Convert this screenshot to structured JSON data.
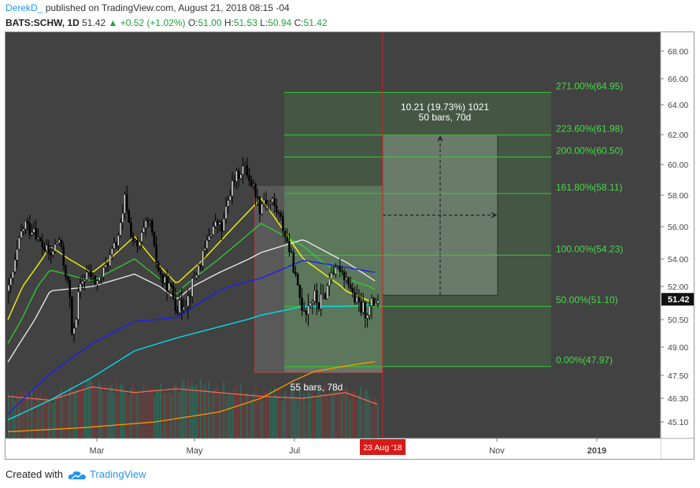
{
  "header": {
    "author": "DerekD_",
    "published": "published on TradingView.com, August 21, 2018 08:15 -04",
    "symbol": "BATS:SCHW, 1D",
    "last": "51.42",
    "change": "+0.52 (+1.02%)",
    "o_label": "O:",
    "o_value": "51.00",
    "h_label": "H:",
    "h_value": "51.53",
    "l_label": "L:",
    "l_value": "50.94",
    "c_label": "C:",
    "c_value": "51.42"
  },
  "footer": {
    "created_with": "Created with",
    "brand": "TradingView"
  },
  "colors": {
    "plot_bg": "#424242",
    "axis_bg": "#ffffff",
    "fib_line": "#33cc33",
    "fib_text": "#44dd44",
    "current_marker": "#d61a1a",
    "price_tag_bg": "#111111",
    "ma_yellow": "#ffff00",
    "ma_green": "#32cd32",
    "ma_white": "#f0f0f0",
    "ma_blue": "#1a1aff",
    "ma_cyan": "#00e5ee",
    "ma_orange": "#ff9900"
  },
  "chart_data": {
    "type": "candlestick",
    "y_axis": {
      "side": "right",
      "ticks": [
        "45.10",
        "46.30",
        "47.50",
        "49.00",
        "50.50",
        "52.00",
        "54.00",
        "56.00",
        "58.00",
        "60.00",
        "62.00",
        "64.00",
        "66.00",
        "68.00"
      ]
    },
    "x_axis": {
      "ticks": [
        "Mar",
        "May",
        "Jul",
        "Nov",
        "2019"
      ],
      "current_date_label": "23 Aug '18"
    },
    "last_price_label": "51.42",
    "fib_levels": [
      {
        "label": "271.00%(64.95)",
        "price": 64.95
      },
      {
        "label": "223.60%(61.98)",
        "price": 61.98
      },
      {
        "label": "200.00%(60.50)",
        "price": 60.5
      },
      {
        "label": "161.80%(58.11)",
        "price": 58.11
      },
      {
        "label": "100.00%(54.23)",
        "price": 54.23
      },
      {
        "label": "50.00%(51.10)",
        "price": 51.1
      },
      {
        "label": "0.00%(47.97)",
        "price": 47.97
      }
    ],
    "annotations": {
      "projection_line1": "10.21 (19.73%) 1021",
      "projection_line2": "50 bars, 70d",
      "measure_label": "55 bars, 78d"
    },
    "price_path": [
      [
        0,
        51.8
      ],
      [
        4,
        53.0
      ],
      [
        8,
        54.4
      ],
      [
        12,
        55.6
      ],
      [
        16,
        56.2
      ],
      [
        20,
        55.8
      ],
      [
        24,
        56.0
      ],
      [
        28,
        55.2
      ],
      [
        32,
        54.8
      ],
      [
        36,
        54.5
      ],
      [
        40,
        54.2
      ],
      [
        44,
        54.8
      ],
      [
        48,
        55.2
      ],
      [
        52,
        53.6
      ],
      [
        55,
        52.6
      ],
      [
        58,
        51.5
      ],
      [
        60,
        49.4
      ],
      [
        62,
        50.2
      ],
      [
        64,
        50.8
      ],
      [
        66,
        51.5
      ],
      [
        70,
        52.4
      ],
      [
        74,
        53.0
      ],
      [
        78,
        52.8
      ],
      [
        82,
        52.3
      ],
      [
        86,
        52.5
      ],
      [
        90,
        53.1
      ],
      [
        94,
        53.8
      ],
      [
        98,
        54.4
      ],
      [
        102,
        55.0
      ],
      [
        106,
        56.0
      ],
      [
        108,
        56.6
      ],
      [
        110,
        57.8
      ],
      [
        112,
        57.2
      ],
      [
        114,
        56.2
      ],
      [
        118,
        55.2
      ],
      [
        122,
        54.6
      ],
      [
        126,
        55.4
      ],
      [
        130,
        56.0
      ],
      [
        134,
        56.3
      ],
      [
        138,
        54.5
      ],
      [
        142,
        53.2
      ],
      [
        146,
        52.4
      ],
      [
        150,
        52.2
      ],
      [
        154,
        51.8
      ],
      [
        158,
        51.3
      ],
      [
        162,
        51.0
      ],
      [
        166,
        51.4
      ],
      [
        170,
        51.5
      ],
      [
        174,
        52.3
      ],
      [
        178,
        53.0
      ],
      [
        182,
        53.8
      ],
      [
        186,
        54.5
      ],
      [
        190,
        55.5
      ],
      [
        194,
        56.0
      ],
      [
        198,
        56.2
      ],
      [
        202,
        55.8
      ],
      [
        206,
        57.0
      ],
      [
        210,
        58.3
      ],
      [
        214,
        59.0
      ],
      [
        218,
        59.4
      ],
      [
        222,
        59.8
      ],
      [
        226,
        59.5
      ],
      [
        230,
        58.8
      ],
      [
        234,
        58.2
      ],
      [
        238,
        57.2
      ],
      [
        242,
        57.8
      ],
      [
        246,
        57.5
      ],
      [
        250,
        57.6
      ],
      [
        254,
        57.0
      ],
      [
        258,
        56.4
      ],
      [
        262,
        55.5
      ],
      [
        266,
        54.6
      ],
      [
        270,
        53.4
      ],
      [
        272,
        52.6
      ],
      [
        274,
        51.8
      ],
      [
        278,
        51.2
      ],
      [
        282,
        51.0
      ],
      [
        286,
        51.4
      ],
      [
        290,
        51.5
      ],
      [
        294,
        51.2
      ],
      [
        298,
        51.5
      ],
      [
        302,
        52.0
      ],
      [
        306,
        53.2
      ],
      [
        310,
        53.0
      ],
      [
        314,
        53.4
      ],
      [
        318,
        52.8
      ],
      [
        322,
        52.4
      ],
      [
        326,
        51.6
      ],
      [
        330,
        51.2
      ],
      [
        334,
        51.0
      ],
      [
        338,
        50.9
      ],
      [
        342,
        51.0
      ],
      [
        346,
        51.3
      ],
      [
        350,
        51.42
      ]
    ],
    "moving_averages": [
      {
        "color": "yellow",
        "points": [
          [
            0,
            50.5
          ],
          [
            40,
            54.8
          ],
          [
            80,
            53.0
          ],
          [
            120,
            55.4
          ],
          [
            160,
            52.2
          ],
          [
            200,
            55.0
          ],
          [
            240,
            57.8
          ],
          [
            280,
            54.0
          ],
          [
            320,
            51.8
          ],
          [
            350,
            51.2
          ]
        ]
      },
      {
        "color": "green",
        "points": [
          [
            0,
            49.2
          ],
          [
            40,
            53.2
          ],
          [
            80,
            52.4
          ],
          [
            120,
            54.0
          ],
          [
            160,
            51.6
          ],
          [
            200,
            54.0
          ],
          [
            240,
            56.2
          ],
          [
            280,
            54.8
          ],
          [
            320,
            52.6
          ],
          [
            350,
            51.8
          ]
        ]
      },
      {
        "color": "white",
        "points": [
          [
            0,
            48.2
          ],
          [
            40,
            51.8
          ],
          [
            80,
            52.0
          ],
          [
            120,
            52.9
          ],
          [
            160,
            51.4
          ],
          [
            200,
            53.0
          ],
          [
            240,
            54.4
          ],
          [
            280,
            55.2
          ],
          [
            320,
            53.8
          ],
          [
            350,
            52.3
          ]
        ]
      },
      {
        "color": "blue",
        "points": [
          [
            0,
            45.5
          ],
          [
            40,
            47.6
          ],
          [
            80,
            49.2
          ],
          [
            120,
            50.4
          ],
          [
            160,
            50.6
          ],
          [
            200,
            51.8
          ],
          [
            240,
            52.6
          ],
          [
            280,
            53.9
          ],
          [
            320,
            53.4
          ],
          [
            350,
            53.0
          ]
        ]
      },
      {
        "color": "cyan",
        "points": [
          [
            0,
            45.2
          ],
          [
            40,
            46.2
          ],
          [
            80,
            47.4
          ],
          [
            120,
            48.8
          ],
          [
            160,
            49.5
          ],
          [
            200,
            50.1
          ],
          [
            240,
            50.7
          ],
          [
            280,
            51.1
          ],
          [
            320,
            51.1
          ],
          [
            350,
            51.2
          ]
        ]
      },
      {
        "color": "orange",
        "points": [
          [
            0,
            44.6
          ],
          [
            70,
            44.8
          ],
          [
            140,
            45.1
          ],
          [
            200,
            45.6
          ],
          [
            240,
            46.3
          ],
          [
            270,
            47.2
          ],
          [
            290,
            47.7
          ],
          [
            320,
            48.0
          ],
          [
            350,
            48.25
          ]
        ]
      }
    ],
    "volume_envelope": [
      [
        0,
        46.4
      ],
      [
        40,
        46.2
      ],
      [
        80,
        46.9
      ],
      [
        120,
        46.6
      ],
      [
        160,
        46.8
      ],
      [
        200,
        46.6
      ],
      [
        240,
        46.4
      ],
      [
        280,
        46.3
      ],
      [
        320,
        46.6
      ],
      [
        350,
        46.0
      ]
    ],
    "projection_box": {
      "price_from": 51.6,
      "price_to": 61.98
    },
    "measure_box": {
      "price_from": 47.65,
      "price_to": 58.6
    }
  }
}
